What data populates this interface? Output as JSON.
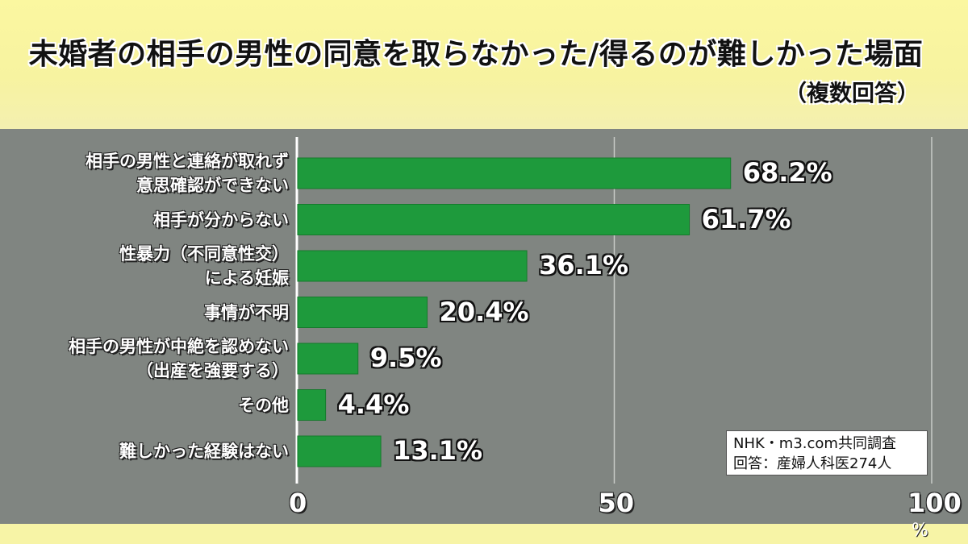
{
  "title": "未婚者の相手の男性の同意を取らなかった/得るのが難しかった場面",
  "subtitle": "（複数回答）",
  "source": {
    "line1": "NHK・m3.com共同調査",
    "line2": "回答：産婦人科医274人"
  },
  "chart_data": {
    "type": "bar",
    "orientation": "horizontal",
    "title": "未婚者の相手の男性の同意を取らなかった/得るのが難しかった場面",
    "subtitle": "（複数回答）",
    "categories": [
      "相手の男性と連絡が取れず\n意思確認ができない",
      "相手が分からない",
      "性暴力（不同意性交）\nによる妊娠",
      "事情が不明",
      "相手の男性が中絶を認めない\n（出産を強要する）",
      "その他",
      "難しかった経験はない"
    ],
    "values": [
      68.2,
      61.7,
      36.1,
      20.4,
      9.5,
      4.4,
      13.1
    ],
    "value_labels": [
      "68.2%",
      "61.7%",
      "36.1%",
      "20.4%",
      "9.5%",
      "4.4%",
      "13.1%"
    ],
    "xlim": [
      0,
      100
    ],
    "xticks": [
      "0",
      "50",
      "100"
    ],
    "unit": "%",
    "grid": true,
    "colors": {
      "bar": "#1e9a3c",
      "panel": "#808581",
      "header": "#f7f4a6"
    }
  }
}
